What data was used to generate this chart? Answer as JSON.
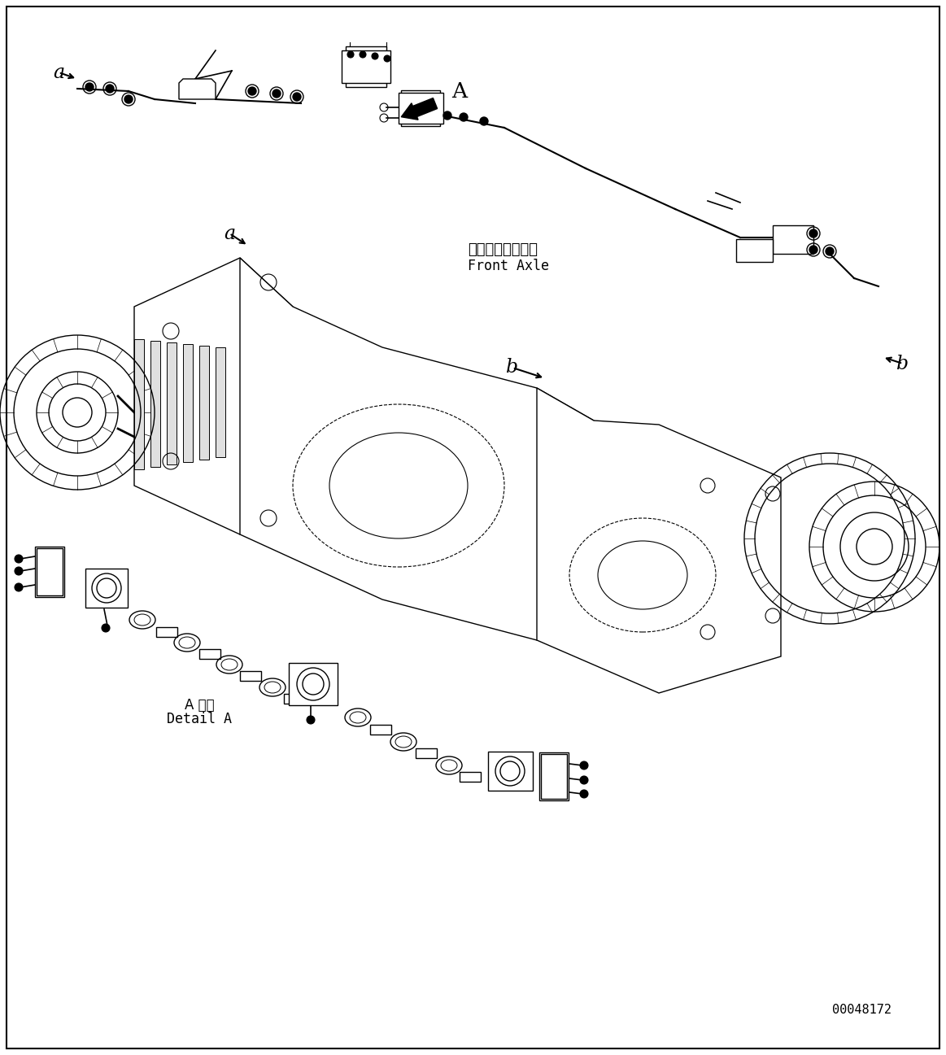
{
  "fig_width": 11.63,
  "fig_height": 12.97,
  "dpi": 100,
  "bg_color": "#ffffff",
  "part_number": "00048172",
  "labels": {
    "a_top_left": "a",
    "A_arrow": "A",
    "a_center": "a",
    "front_axle_jp": "フロントアクスル",
    "front_axle_en": "Front Axle",
    "b_label": "b",
    "b_right": "b",
    "detail_jp": "A 詳細",
    "detail_en": "Detail A"
  },
  "font_sizes": {
    "label": 14,
    "part_number": 11,
    "axle_label": 12,
    "detail": 12
  },
  "line_color": "#000000",
  "line_width": 1.0
}
